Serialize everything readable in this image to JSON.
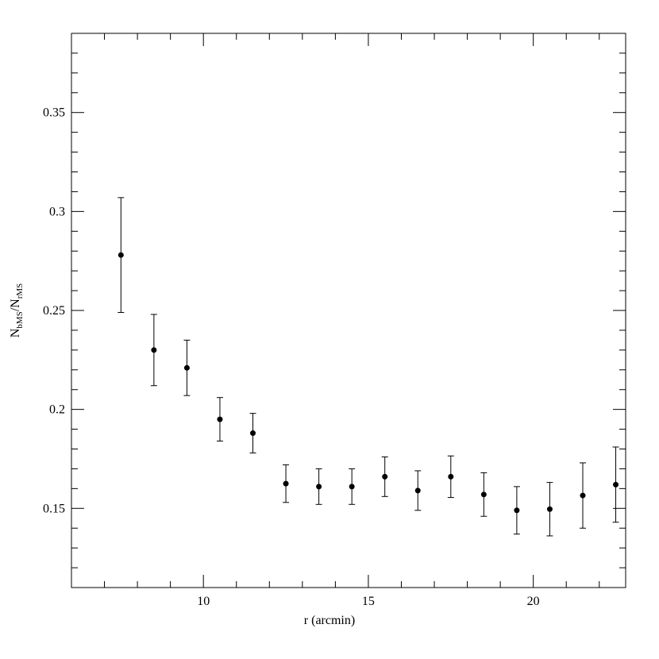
{
  "chart_data": {
    "type": "scatter",
    "xlabel": "r (arcmin)",
    "ylabel": [
      "N",
      "bMS",
      "/N",
      "rMS"
    ],
    "x": [
      7.5,
      8.5,
      9.5,
      10.5,
      11.5,
      12.5,
      13.5,
      14.5,
      15.5,
      16.5,
      17.5,
      18.5,
      19.5,
      20.5,
      21.5,
      22.5
    ],
    "values": [
      0.278,
      0.23,
      0.221,
      0.195,
      0.188,
      0.1625,
      0.161,
      0.161,
      0.166,
      0.159,
      0.166,
      0.157,
      0.149,
      0.1496,
      0.1565,
      0.162
    ],
    "errors": [
      0.029,
      0.018,
      0.014,
      0.011,
      0.01,
      0.0095,
      0.009,
      0.009,
      0.01,
      0.01,
      0.0105,
      0.011,
      0.012,
      0.0135,
      0.0165,
      0.019
    ],
    "color": "#000000",
    "xlim": [
      6,
      22.8
    ],
    "ylim": [
      0.11,
      0.39
    ],
    "xticks": [
      10,
      15,
      20
    ],
    "yticks": [
      0.15,
      0.2,
      0.25,
      0.3,
      0.35
    ],
    "xminorticks": [
      7,
      8,
      9,
      11,
      12,
      13,
      14,
      16,
      17,
      18,
      19,
      21,
      22
    ],
    "yminorticks": [
      0.12,
      0.13,
      0.14,
      0.16,
      0.17,
      0.18,
      0.19,
      0.21,
      0.22,
      0.23,
      0.24,
      0.26,
      0.27,
      0.28,
      0.29,
      0.31,
      0.32,
      0.33,
      0.34,
      0.36,
      0.37,
      0.38
    ]
  }
}
